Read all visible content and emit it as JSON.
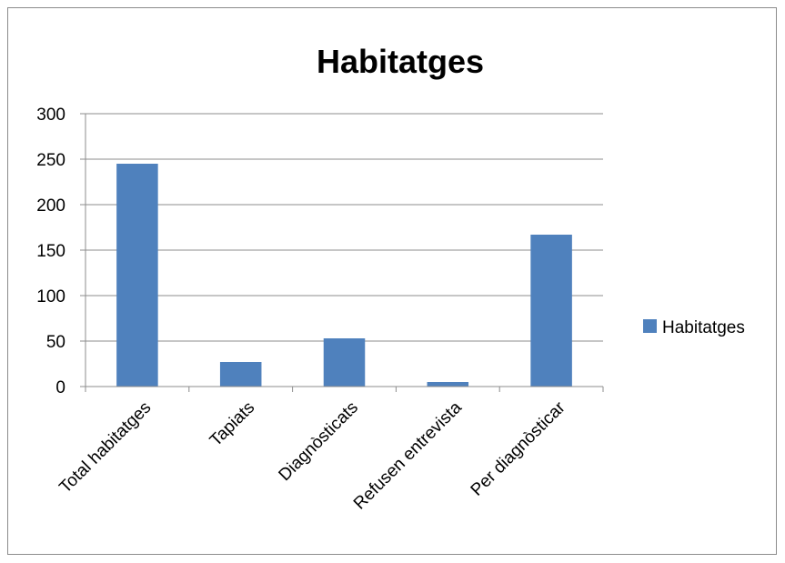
{
  "chart_data": {
    "type": "bar",
    "title": "Habitatges",
    "categories": [
      "Total habitatges",
      "Tapiats",
      "Diagnòsticats",
      "Refusen entrevista",
      "Per diagnòsticar"
    ],
    "series": [
      {
        "name": "Habitatges",
        "values": [
          245,
          27,
          53,
          5,
          167
        ],
        "color": "#4f81bd"
      }
    ],
    "ylim": [
      0,
      300
    ],
    "yticks": [
      0,
      50,
      100,
      150,
      200,
      250,
      300
    ],
    "grid": true,
    "legend": "right",
    "xlabel": "",
    "ylabel": ""
  }
}
